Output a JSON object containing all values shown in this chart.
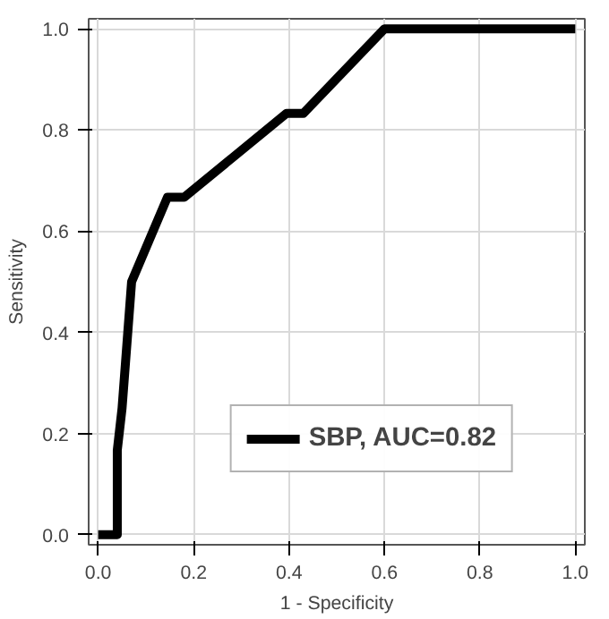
{
  "chart_data": {
    "type": "line",
    "xlabel": "1 - Specificity",
    "ylabel": "Sensitivity",
    "series": [
      {
        "name": "SBP, AUC=0.82",
        "color": "#000000",
        "x": [
          0.0,
          0.04,
          0.04,
          0.05,
          0.07,
          0.145,
          0.18,
          0.395,
          0.43,
          0.6,
          1.0
        ],
        "values": [
          0.0,
          0.0,
          0.167,
          0.25,
          0.5,
          0.667,
          0.667,
          0.833,
          0.833,
          1.0,
          1.0
        ]
      }
    ],
    "xlim": [
      -0.02,
      1.02
    ],
    "ylim": [
      -0.02,
      1.02
    ],
    "xticks": [
      {
        "value": 0,
        "label": "0.0"
      },
      0.2,
      0.4,
      0.6,
      0.8,
      {
        "value": 1,
        "label": "1.0"
      }
    ],
    "yticks": [
      {
        "value": 0,
        "label": "0.0"
      },
      0.2,
      0.4,
      0.6,
      0.8,
      {
        "value": 1,
        "label": "1.0"
      }
    ],
    "grid": true,
    "legend": "bottom right",
    "line_style": "solid",
    "marker": "none"
  }
}
